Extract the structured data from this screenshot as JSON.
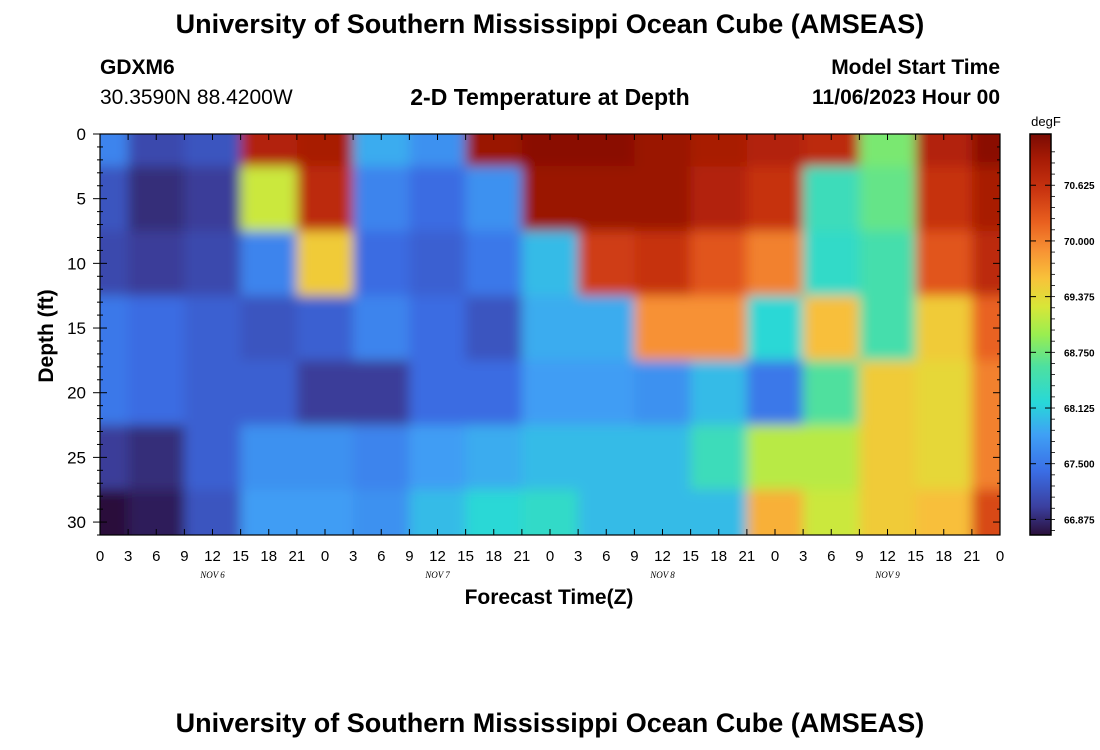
{
  "header": {
    "title": "University of Southern Mississippi Ocean Cube (AMSEAS)",
    "station": "GDXM6",
    "coords": "30.3590N  88.4200W",
    "subtitle": "2-D Temperature at Depth",
    "start_label": "Model Start Time",
    "start_value": "11/06/2023 Hour 00"
  },
  "footer": {
    "title_repeat": "University of Southern Mississippi Ocean Cube (AMSEAS)"
  },
  "chart_data": {
    "type": "heatmap",
    "xlabel": "Forecast Time(Z)",
    "ylabel": "Depth (ft)",
    "x_tick_labels": [
      "0",
      "3",
      "6",
      "9",
      "12",
      "15",
      "18",
      "21",
      "0",
      "3",
      "6",
      "9",
      "12",
      "15",
      "18",
      "21",
      "0",
      "3",
      "6",
      "9",
      "12",
      "15",
      "18",
      "21",
      "0",
      "3",
      "6",
      "9",
      "12",
      "15",
      "18",
      "21",
      "0"
    ],
    "day_labels": [
      "NOV 6",
      "NOV 7",
      "NOV 8",
      "NOV 9"
    ],
    "y_tick_labels": [
      "0",
      "5",
      "10",
      "15",
      "20",
      "25",
      "30"
    ],
    "xlim_hours": [
      0,
      96
    ],
    "ylim_ft": [
      0,
      31
    ],
    "colorbar": {
      "unit": "degF",
      "range": [
        66.7,
        71.2
      ],
      "tick_labels": [
        "70.625",
        "70.000",
        "69.375",
        "68.750",
        "68.125",
        "67.500",
        "66.875"
      ],
      "tick_values": [
        70.625,
        70.0,
        69.375,
        68.75,
        68.125,
        67.5,
        66.875
      ]
    },
    "depths_ft": [
      0,
      5,
      10,
      15,
      20,
      25,
      30
    ],
    "times_hours": [
      0,
      6,
      12,
      18,
      24,
      30,
      36,
      42,
      48,
      54,
      60,
      66,
      72,
      78,
      84,
      90,
      96
    ],
    "temperature_degF": [
      [
        67.6,
        67.1,
        67.2,
        70.8,
        70.9,
        67.9,
        67.7,
        71.0,
        71.1,
        71.1,
        71.0,
        70.9,
        70.8,
        70.7,
        68.8,
        70.8,
        71.1
      ],
      [
        67.2,
        66.9,
        67.0,
        69.2,
        70.7,
        67.6,
        67.4,
        67.7,
        71.0,
        71.0,
        71.0,
        70.8,
        70.6,
        68.4,
        68.7,
        70.6,
        70.9
      ],
      [
        67.1,
        67.0,
        67.1,
        67.6,
        69.5,
        67.4,
        67.3,
        67.5,
        68.0,
        70.5,
        70.6,
        70.3,
        70.0,
        68.3,
        68.5,
        70.3,
        70.7
      ],
      [
        67.5,
        67.4,
        67.3,
        67.2,
        67.3,
        67.6,
        67.4,
        67.2,
        67.9,
        67.9,
        69.9,
        69.9,
        68.2,
        69.6,
        68.5,
        69.5,
        70.2
      ],
      [
        67.5,
        67.4,
        67.3,
        67.3,
        67.0,
        67.0,
        67.4,
        67.4,
        67.8,
        67.8,
        67.7,
        68.0,
        67.5,
        68.6,
        69.5,
        69.4,
        70.0
      ],
      [
        67.0,
        66.9,
        67.3,
        67.7,
        67.7,
        67.6,
        67.8,
        67.9,
        68.0,
        68.0,
        68.0,
        68.4,
        69.1,
        69.1,
        69.5,
        69.4,
        70.0
      ],
      [
        66.7,
        66.8,
        67.2,
        67.8,
        67.8,
        67.7,
        68.0,
        68.2,
        68.3,
        68.0,
        68.0,
        68.0,
        69.7,
        69.2,
        69.5,
        69.6,
        70.4
      ]
    ]
  }
}
